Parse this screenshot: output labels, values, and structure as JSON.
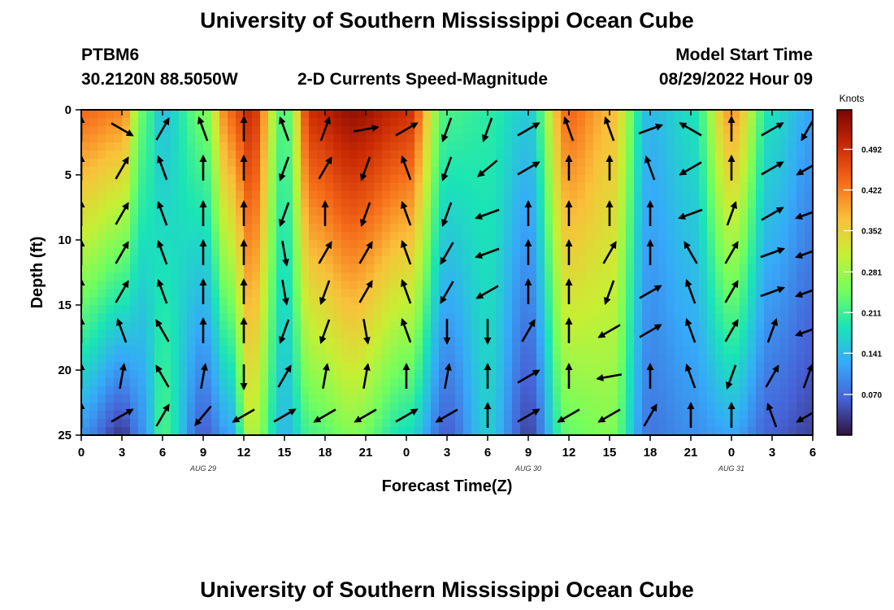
{
  "header": {
    "title": "University of Southern Mississippi Ocean Cube",
    "station": "PTBM6",
    "coords": "30.2120N  88.5050W",
    "subtitle": "2-D Currents Speed-Magnitude",
    "start_label": "Model Start Time",
    "start_value": "08/29/2022 Hour 09"
  },
  "footer": {
    "title": "University of Southern Mississippi Ocean Cube"
  },
  "chart_data": {
    "type": "heatmap",
    "title": "2-D Currents Speed-Magnitude",
    "xlabel": "Forecast Time(Z)",
    "ylabel": "Depth (ft)",
    "x_ticks": [
      "0",
      "3",
      "6",
      "9",
      "12",
      "15",
      "18",
      "21",
      "0",
      "3",
      "6",
      "9",
      "12",
      "15",
      "18",
      "21",
      "0",
      "3",
      "6"
    ],
    "date_labels": [
      {
        "tick_index": 3,
        "text": "AUG 29"
      },
      {
        "tick_index": 11,
        "text": "AUG 30"
      },
      {
        "tick_index": 16,
        "text": "AUG 31"
      }
    ],
    "y_ticks": [
      0,
      5,
      10,
      15,
      20,
      25
    ],
    "ylim": [
      0,
      25
    ],
    "y_inverted": true,
    "colorbar": {
      "label": "Knots",
      "ticks": [
        0.07,
        0.141,
        0.211,
        0.281,
        0.352,
        0.422,
        0.492
      ],
      "tick_labels": [
        "0.070",
        "0.141",
        "0.211",
        "0.281",
        "0.352",
        "0.422",
        "0.492"
      ],
      "range": [
        0,
        0.56
      ],
      "colormap": [
        "#30123b",
        "#4662d7",
        "#36aaf9",
        "#1ae4b6",
        "#72fe5e",
        "#c7ef34",
        "#fabf3a",
        "#f66b19",
        "#cb2a04",
        "#7a0403"
      ]
    },
    "speed_profiles": [
      {
        "time_h": 0,
        "surface": 0.44,
        "bottom": 0.1
      },
      {
        "time_h": 3,
        "surface": 0.42,
        "bottom": 0.03
      },
      {
        "time_h": 4.5,
        "surface": 0.24,
        "bottom": 0.1
      },
      {
        "time_h": 6,
        "surface": 0.15,
        "bottom": 0.22
      },
      {
        "time_h": 9,
        "surface": 0.25,
        "bottom": 0.06
      },
      {
        "time_h": 11,
        "surface": 0.44,
        "bottom": 0.12
      },
      {
        "time_h": 12.5,
        "surface": 0.5,
        "bottom": 0.3
      },
      {
        "time_h": 15,
        "surface": 0.22,
        "bottom": 0.14
      },
      {
        "time_h": 17,
        "surface": 0.5,
        "bottom": 0.22
      },
      {
        "time_h": 20,
        "surface": 0.54,
        "bottom": 0.26
      },
      {
        "time_h": 24,
        "surface": 0.5,
        "bottom": 0.18
      },
      {
        "time_h": 27,
        "surface": 0.22,
        "bottom": 0.06
      },
      {
        "time_h": 30,
        "surface": 0.2,
        "bottom": 0.16
      },
      {
        "time_h": 33,
        "surface": 0.16,
        "bottom": 0.04
      },
      {
        "time_h": 36,
        "surface": 0.44,
        "bottom": 0.24
      },
      {
        "time_h": 39,
        "surface": 0.38,
        "bottom": 0.26
      },
      {
        "time_h": 42,
        "surface": 0.14,
        "bottom": 0.08
      },
      {
        "time_h": 45,
        "surface": 0.18,
        "bottom": 0.1
      },
      {
        "time_h": 48,
        "surface": 0.4,
        "bottom": 0.12
      },
      {
        "time_h": 51,
        "surface": 0.18,
        "bottom": 0.06
      },
      {
        "time_h": 54,
        "surface": 0.12,
        "bottom": 0.04
      }
    ],
    "vector_rows_depth_ft": [
      1.5,
      4.5,
      8,
      11,
      14,
      17,
      20.5,
      23.5
    ],
    "vector_cols_time_h": [
      0,
      3,
      6,
      9,
      12,
      15,
      18,
      21,
      24,
      27,
      30,
      33,
      36,
      39,
      42,
      45,
      48,
      51,
      54
    ],
    "vector_directions_deg": [
      [
        0,
        120,
        30,
        340,
        0,
        340,
        20,
        80,
        60,
        200,
        200,
        60,
        340,
        340,
        70,
        300,
        0,
        60,
        210
      ],
      [
        0,
        30,
        340,
        0,
        0,
        200,
        30,
        200,
        340,
        200,
        230,
        60,
        0,
        0,
        340,
        240,
        0,
        60,
        240
      ],
      [
        0,
        30,
        340,
        0,
        0,
        200,
        0,
        200,
        340,
        200,
        250,
        0,
        0,
        0,
        0,
        250,
        20,
        60,
        250
      ],
      [
        0,
        30,
        340,
        0,
        0,
        170,
        30,
        30,
        340,
        210,
        250,
        0,
        0,
        30,
        0,
        330,
        30,
        70,
        250
      ],
      [
        0,
        30,
        340,
        0,
        0,
        170,
        200,
        30,
        340,
        210,
        240,
        0,
        0,
        200,
        60,
        340,
        30,
        70,
        250
      ],
      [
        0,
        340,
        330,
        0,
        0,
        200,
        200,
        170,
        340,
        180,
        180,
        30,
        0,
        240,
        60,
        340,
        30,
        20,
        250
      ],
      [
        0,
        10,
        330,
        10,
        180,
        30,
        10,
        10,
        0,
        10,
        0,
        60,
        0,
        260,
        0,
        340,
        200,
        30,
        20
      ],
      [
        0,
        60,
        30,
        220,
        240,
        60,
        240,
        240,
        60,
        240,
        0,
        60,
        240,
        240,
        30,
        0,
        0,
        340,
        240
      ]
    ]
  }
}
